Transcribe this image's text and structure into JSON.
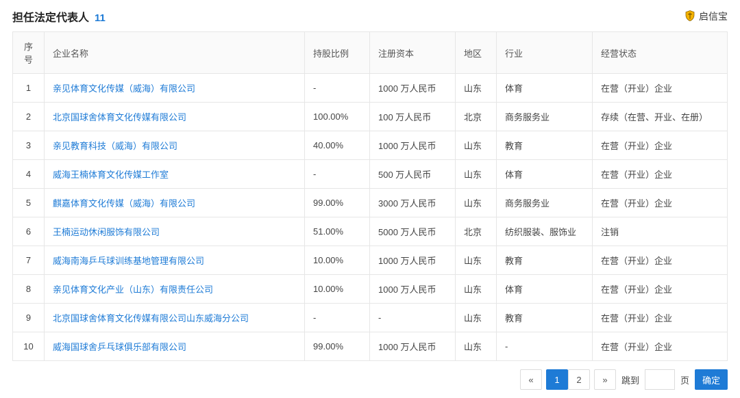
{
  "header": {
    "title": "担任法定代表人",
    "count": "11",
    "brand": "启信宝"
  },
  "table": {
    "columns": {
      "idx": "序号",
      "name": "企业名称",
      "share": "持股比例",
      "capital": "注册资本",
      "region": "地区",
      "industry": "行业",
      "status": "经营状态"
    },
    "rows": [
      {
        "idx": "1",
        "name": "亲见体育文化传媒（威海）有限公司",
        "share": "-",
        "capital": "1000 万人民币",
        "region": "山东",
        "industry": "体育",
        "status": "在营（开业）企业"
      },
      {
        "idx": "2",
        "name": "北京国球舍体育文化传媒有限公司",
        "share": "100.00%",
        "capital": "100 万人民币",
        "region": "北京",
        "industry": "商务服务业",
        "status": "存续（在营、开业、在册）"
      },
      {
        "idx": "3",
        "name": "亲见教育科技（威海）有限公司",
        "share": "40.00%",
        "capital": "1000 万人民币",
        "region": "山东",
        "industry": "教育",
        "status": "在营（开业）企业"
      },
      {
        "idx": "4",
        "name": "威海王楠体育文化传媒工作室",
        "share": "-",
        "capital": "500 万人民币",
        "region": "山东",
        "industry": "体育",
        "status": "在营（开业）企业"
      },
      {
        "idx": "5",
        "name": "麒嘉体育文化传媒（威海）有限公司",
        "share": "99.00%",
        "capital": "3000 万人民币",
        "region": "山东",
        "industry": "商务服务业",
        "status": "在营（开业）企业"
      },
      {
        "idx": "6",
        "name": "王楠运动休闲服饰有限公司",
        "share": "51.00%",
        "capital": "5000 万人民币",
        "region": "北京",
        "industry": "纺织服装、服饰业",
        "status": "注销"
      },
      {
        "idx": "7",
        "name": "威海南海乒乓球训练基地管理有限公司",
        "share": "10.00%",
        "capital": "1000 万人民币",
        "region": "山东",
        "industry": "教育",
        "status": "在营（开业）企业"
      },
      {
        "idx": "8",
        "name": "亲见体育文化产业（山东）有限责任公司",
        "share": "10.00%",
        "capital": "1000 万人民币",
        "region": "山东",
        "industry": "体育",
        "status": "在营（开业）企业"
      },
      {
        "idx": "9",
        "name": "北京国球舍体育文化传媒有限公司山东威海分公司",
        "share": "-",
        "capital": "-",
        "region": "山东",
        "industry": "教育",
        "status": "在营（开业）企业"
      },
      {
        "idx": "10",
        "name": "威海国球舍乒乓球俱乐部有限公司",
        "share": "99.00%",
        "capital": "1000 万人民币",
        "region": "山东",
        "industry": "-",
        "status": "在营（开业）企业"
      }
    ]
  },
  "pagination": {
    "prev": "«",
    "next": "»",
    "pages": [
      "1",
      "2"
    ],
    "current": "1",
    "jump_label": "跳到",
    "page_suffix": "页",
    "confirm": "确定",
    "jump_value": ""
  },
  "colors": {
    "link": "#1e7bd6",
    "border": "#e6e6e6",
    "header_bg": "#fafafa",
    "text": "#333333"
  }
}
